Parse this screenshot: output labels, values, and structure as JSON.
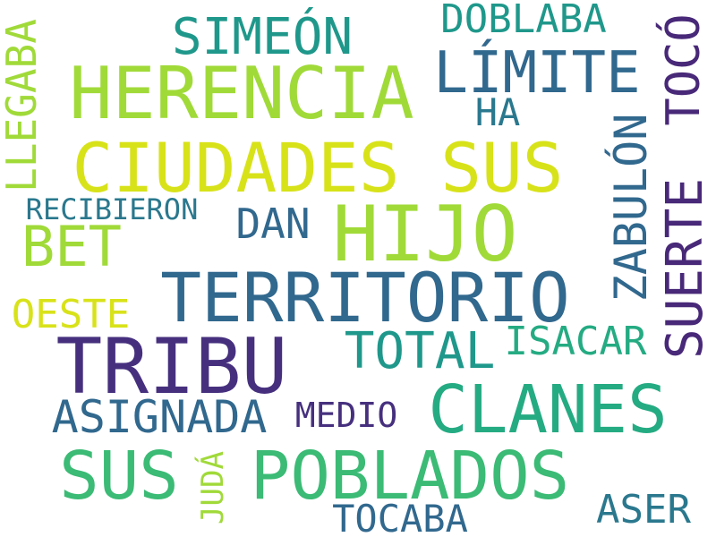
{
  "words": [
    {
      "text": "HIJO",
      "color": "#a0da39",
      "orientation": "horizontal"
    },
    {
      "text": "TRIBU",
      "color": "#46307e",
      "orientation": "horizontal"
    },
    {
      "text": "HERENCIA",
      "color": "#a0da39",
      "orientation": "horizontal"
    },
    {
      "text": "CIUDADES SUS",
      "color": "#d8e219",
      "orientation": "horizontal"
    },
    {
      "text": "TERRITORIO",
      "color": "#31688e",
      "orientation": "horizontal"
    },
    {
      "text": "CLANES",
      "color": "#25ab82",
      "orientation": "horizontal"
    },
    {
      "text": "POBLADOS",
      "color": "#3bbb75",
      "orientation": "horizontal"
    },
    {
      "text": "SUS",
      "color": "#3bbb75",
      "orientation": "horizontal"
    },
    {
      "text": "SUERTE",
      "color": "#482878",
      "orientation": "vertical"
    },
    {
      "text": "LÍMITE",
      "color": "#31688e",
      "orientation": "horizontal"
    },
    {
      "text": "BET",
      "color": "#a0da39",
      "orientation": "horizontal"
    },
    {
      "text": "SIMEÓN",
      "color": "#1f988b",
      "orientation": "horizontal"
    },
    {
      "text": "TOTAL",
      "color": "#1f988b",
      "orientation": "horizontal"
    },
    {
      "text": "ASIGNADA",
      "color": "#31688e",
      "orientation": "horizontal"
    },
    {
      "text": "ZABULÓN",
      "color": "#31688e",
      "orientation": "vertical"
    },
    {
      "text": "TOCÓ",
      "color": "#482878",
      "orientation": "vertical"
    },
    {
      "text": "LLEGABA",
      "color": "#a0da39",
      "orientation": "vertical"
    },
    {
      "text": "DAN",
      "color": "#31688e",
      "orientation": "horizontal"
    },
    {
      "text": "ISACAR",
      "color": "#25ab82",
      "orientation": "horizontal"
    },
    {
      "text": "OESTE",
      "color": "#d8e219",
      "orientation": "horizontal"
    },
    {
      "text": "DOBLABA",
      "color": "#1f988b",
      "orientation": "horizontal"
    },
    {
      "text": "TOCABA",
      "color": "#31688e",
      "orientation": "horizontal"
    },
    {
      "text": "ASER",
      "color": "#2a788e",
      "orientation": "horizontal"
    },
    {
      "text": "HA",
      "color": "#2a788e",
      "orientation": "horizontal"
    },
    {
      "text": "MEDIO",
      "color": "#46307e",
      "orientation": "horizontal"
    },
    {
      "text": "JUDÁ",
      "color": "#a0da39",
      "orientation": "vertical"
    },
    {
      "text": "RECIBIERON",
      "color": "#2a788e",
      "orientation": "horizontal"
    }
  ]
}
